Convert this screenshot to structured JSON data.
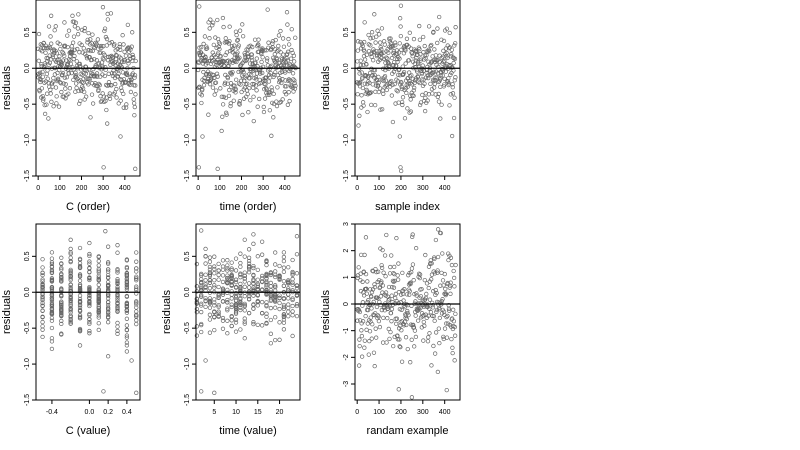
{
  "figure": {
    "layout": "grid-2x3",
    "point_color": "#666666",
    "axis_color": "#000000",
    "zero_line_color": "#000000"
  },
  "chart_data": [
    {
      "type": "scatter",
      "xlabel": "C (order)",
      "ylabel": "residuals",
      "xlim": [
        -10,
        470
      ],
      "ylim": [
        -1.5,
        0.95
      ],
      "xticks": [
        0,
        100,
        200,
        300,
        400
      ],
      "yticks": [
        -1.5,
        -1.0,
        -0.5,
        0.0,
        0.5
      ],
      "ytick_labels": [
        "-1.5",
        "-1.0",
        "-0.5",
        "0.0",
        "0.5"
      ],
      "zero_line": 0,
      "n_points": 450,
      "y_summary": {
        "center": 0.0,
        "spread": 0.28
      },
      "outliers": [
        [
          299,
          0.85
        ],
        [
          302,
          -1.38
        ],
        [
          448,
          -1.4
        ],
        [
          60,
          0.73
        ],
        [
          380,
          -0.95
        ]
      ],
      "x_mode": "index"
    },
    {
      "type": "scatter",
      "xlabel": "time (order)",
      "ylabel": "residuals",
      "xlim": [
        -10,
        470
      ],
      "ylim": [
        -1.5,
        0.95
      ],
      "xticks": [
        0,
        100,
        200,
        300,
        400
      ],
      "yticks": [
        -1.5,
        -1.0,
        -0.5,
        0.0,
        0.5
      ],
      "ytick_labels": [
        "-1.5",
        "-1.0",
        "-0.5",
        "0.0",
        "0.5"
      ],
      "zero_line": 0,
      "n_points": 450,
      "y_summary": {
        "center": 0.0,
        "spread": 0.28
      },
      "outliers": [
        [
          5,
          0.86
        ],
        [
          3,
          -1.38
        ],
        [
          90,
          -1.4
        ],
        [
          20,
          -0.95
        ],
        [
          410,
          0.78
        ]
      ],
      "x_mode": "index"
    },
    {
      "type": "scatter",
      "xlabel": "sample index",
      "ylabel": "residuals",
      "xlim": [
        -10,
        470
      ],
      "ylim": [
        -1.5,
        0.95
      ],
      "xticks": [
        0,
        100,
        200,
        300,
        400
      ],
      "yticks": [
        -1.5,
        -1.0,
        -0.5,
        0.0,
        0.5
      ],
      "ytick_labels": [
        "-1.5",
        "-1.0",
        "-0.5",
        "0.0",
        "0.5"
      ],
      "zero_line": 0,
      "n_points": 450,
      "y_summary": {
        "center": 0.0,
        "spread": 0.28
      },
      "outliers": [
        [
          200,
          0.87
        ],
        [
          198,
          -1.38
        ],
        [
          201,
          -1.43
        ],
        [
          195,
          -0.95
        ],
        [
          380,
          -0.7
        ]
      ],
      "x_mode": "index"
    },
    {
      "type": "scatter",
      "xlabel": "C (value)",
      "ylabel": "residuals",
      "xlim": [
        -0.57,
        0.54
      ],
      "ylim": [
        -1.5,
        0.95
      ],
      "xticks": [
        -0.4,
        0.0,
        0.2,
        0.4
      ],
      "xtick_labels": [
        "-0.4",
        "0.0",
        "0.2",
        "0.4"
      ],
      "yticks": [
        -1.5,
        -1.0,
        -0.5,
        0.0,
        0.5
      ],
      "ytick_labels": [
        "-1.5",
        "-1.0",
        "-0.5",
        "0.0",
        "0.5"
      ],
      "zero_line": 0,
      "n_points": 450,
      "y_summary": {
        "center": 0.0,
        "spread": 0.28
      },
      "x_levels": [
        -0.5,
        -0.4,
        -0.3,
        -0.2,
        -0.1,
        0.0,
        0.1,
        0.2,
        0.3,
        0.4,
        0.5
      ],
      "outliers": [
        [
          0.17,
          0.85
        ],
        [
          0.15,
          -1.38
        ],
        [
          0.5,
          -1.4
        ],
        [
          -0.2,
          0.73
        ],
        [
          0.45,
          -0.95
        ]
      ],
      "x_mode": "levels"
    },
    {
      "type": "scatter",
      "xlabel": "time (value)",
      "ylabel": "residuals",
      "xlim": [
        0.8,
        24.7
      ],
      "ylim": [
        -1.5,
        0.95
      ],
      "xticks": [
        5,
        10,
        15,
        20
      ],
      "yticks": [
        -1.5,
        -1.0,
        -0.5,
        0.0,
        0.5
      ],
      "ytick_labels": [
        "-1.5",
        "-1.0",
        "-0.5",
        "0.0",
        "0.5"
      ],
      "zero_line": 0,
      "n_points": 450,
      "y_summary": {
        "center": 0.0,
        "spread": 0.28
      },
      "x_levels": [
        1,
        2,
        3,
        4,
        5,
        6,
        7,
        8,
        9,
        10,
        11,
        12,
        13,
        14,
        15,
        16,
        17,
        18,
        19,
        20,
        21,
        22,
        23,
        24
      ],
      "outliers": [
        [
          2,
          0.86
        ],
        [
          2,
          -1.38
        ],
        [
          5,
          -1.4
        ],
        [
          3,
          -0.95
        ],
        [
          24,
          0.78
        ]
      ],
      "x_mode": "levels"
    },
    {
      "type": "scatter",
      "xlabel": "randam example",
      "ylabel": "residuals",
      "xlim": [
        -10,
        470
      ],
      "ylim": [
        -3.6,
        3.0
      ],
      "xticks": [
        0,
        100,
        200,
        300,
        400
      ],
      "yticks": [
        -3,
        -2,
        -1,
        0,
        1,
        2,
        3
      ],
      "ytick_labels": [
        "-3",
        "-2",
        "-1",
        "0",
        "1",
        "2",
        "3"
      ],
      "zero_line": 0,
      "n_points": 400,
      "y_summary": {
        "center": 0.0,
        "spread": 1.0
      },
      "outliers": [
        [
          250,
          -3.5
        ],
        [
          190,
          -3.2
        ],
        [
          370,
          2.8
        ],
        [
          40,
          2.5
        ]
      ],
      "x_mode": "index"
    }
  ]
}
